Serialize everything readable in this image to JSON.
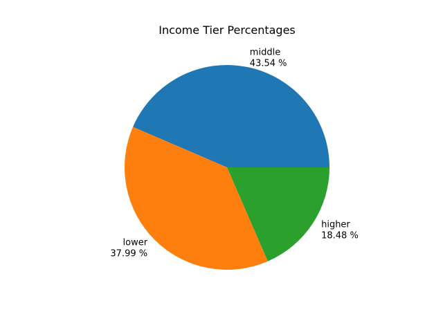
{
  "chart_data": {
    "type": "pie",
    "title": "Income Tier Percentages",
    "slices": [
      {
        "label": "middle",
        "value": 43.54,
        "percent_label": "43.54 %",
        "color": "#1f77b4"
      },
      {
        "label": "lower",
        "value": 37.99,
        "percent_label": "37.99 %",
        "color": "#ff7f0e"
      },
      {
        "label": "higher",
        "value": 18.48,
        "percent_label": "18.48 %",
        "color": "#2ca02c"
      }
    ],
    "start_angle_deg": 0,
    "direction": "counterclockwise",
    "legend": "none"
  }
}
